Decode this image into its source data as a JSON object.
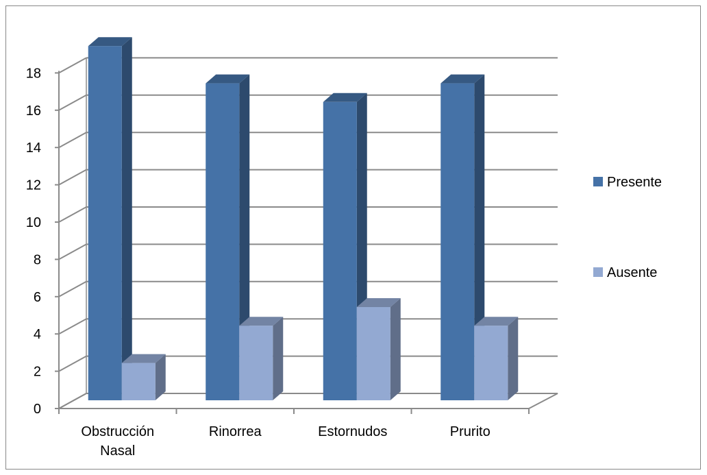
{
  "chart_data": {
    "type": "bar",
    "categories": [
      "Obstrucción Nasal",
      "Rinorrea",
      "Estornudos",
      "Prurito"
    ],
    "category_lines": [
      [
        "Obstrucción",
        "Nasal"
      ],
      [
        "Rinorrea"
      ],
      [
        "Estornudos"
      ],
      [
        "Prurito"
      ]
    ],
    "series": [
      {
        "name": "Presente",
        "values": [
          19,
          17,
          16,
          17
        ],
        "color": "#4572A7"
      },
      {
        "name": "Ausente",
        "values": [
          2,
          4,
          5,
          4
        ],
        "color": "#93A9D2"
      }
    ],
    "ylim": [
      0,
      18
    ],
    "yticks": [
      "0",
      "2",
      "4",
      "6",
      "8",
      "10",
      "12",
      "14",
      "16",
      "18"
    ],
    "grid": true,
    "legend_position": "right",
    "style": "3d-clustered-column"
  }
}
